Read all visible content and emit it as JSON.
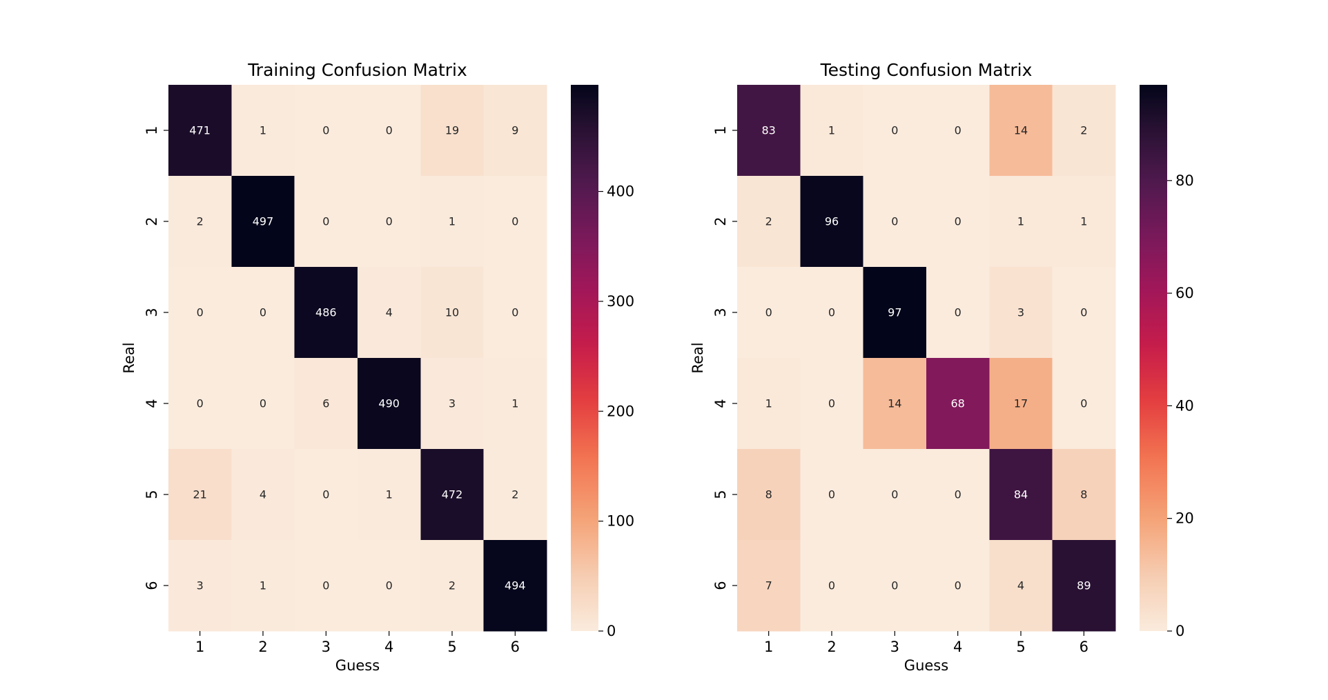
{
  "chart_data": [
    {
      "type": "heatmap",
      "title": "Training Confusion Matrix",
      "xlabel": "Guess",
      "ylabel": "Real",
      "x_categories": [
        "1",
        "2",
        "3",
        "4",
        "5",
        "6"
      ],
      "y_categories": [
        "1",
        "2",
        "3",
        "4",
        "5",
        "6"
      ],
      "values": [
        [
          471,
          1,
          0,
          0,
          19,
          9
        ],
        [
          2,
          497,
          0,
          0,
          1,
          0
        ],
        [
          0,
          0,
          486,
          4,
          10,
          0
        ],
        [
          0,
          0,
          6,
          490,
          3,
          1
        ],
        [
          21,
          4,
          0,
          1,
          472,
          2
        ],
        [
          3,
          1,
          0,
          0,
          2,
          494
        ]
      ],
      "colorbar": {
        "min": 0,
        "max": 497,
        "ticks": [
          0,
          100,
          200,
          300,
          400
        ]
      },
      "colormap": "rocket_r"
    },
    {
      "type": "heatmap",
      "title": "Testing Confusion Matrix",
      "xlabel": "Guess",
      "ylabel": "Real",
      "x_categories": [
        "1",
        "2",
        "3",
        "4",
        "5",
        "6"
      ],
      "y_categories": [
        "1",
        "2",
        "3",
        "4",
        "5",
        "6"
      ],
      "values": [
        [
          83,
          1,
          0,
          0,
          14,
          2
        ],
        [
          2,
          96,
          0,
          0,
          1,
          1
        ],
        [
          0,
          0,
          97,
          0,
          3,
          0
        ],
        [
          1,
          0,
          14,
          68,
          17,
          0
        ],
        [
          8,
          0,
          0,
          0,
          84,
          8
        ],
        [
          7,
          0,
          0,
          0,
          4,
          89
        ]
      ],
      "colorbar": {
        "min": 0,
        "max": 97,
        "ticks": [
          0,
          20,
          40,
          60,
          80
        ]
      },
      "colormap": "rocket_r"
    }
  ]
}
